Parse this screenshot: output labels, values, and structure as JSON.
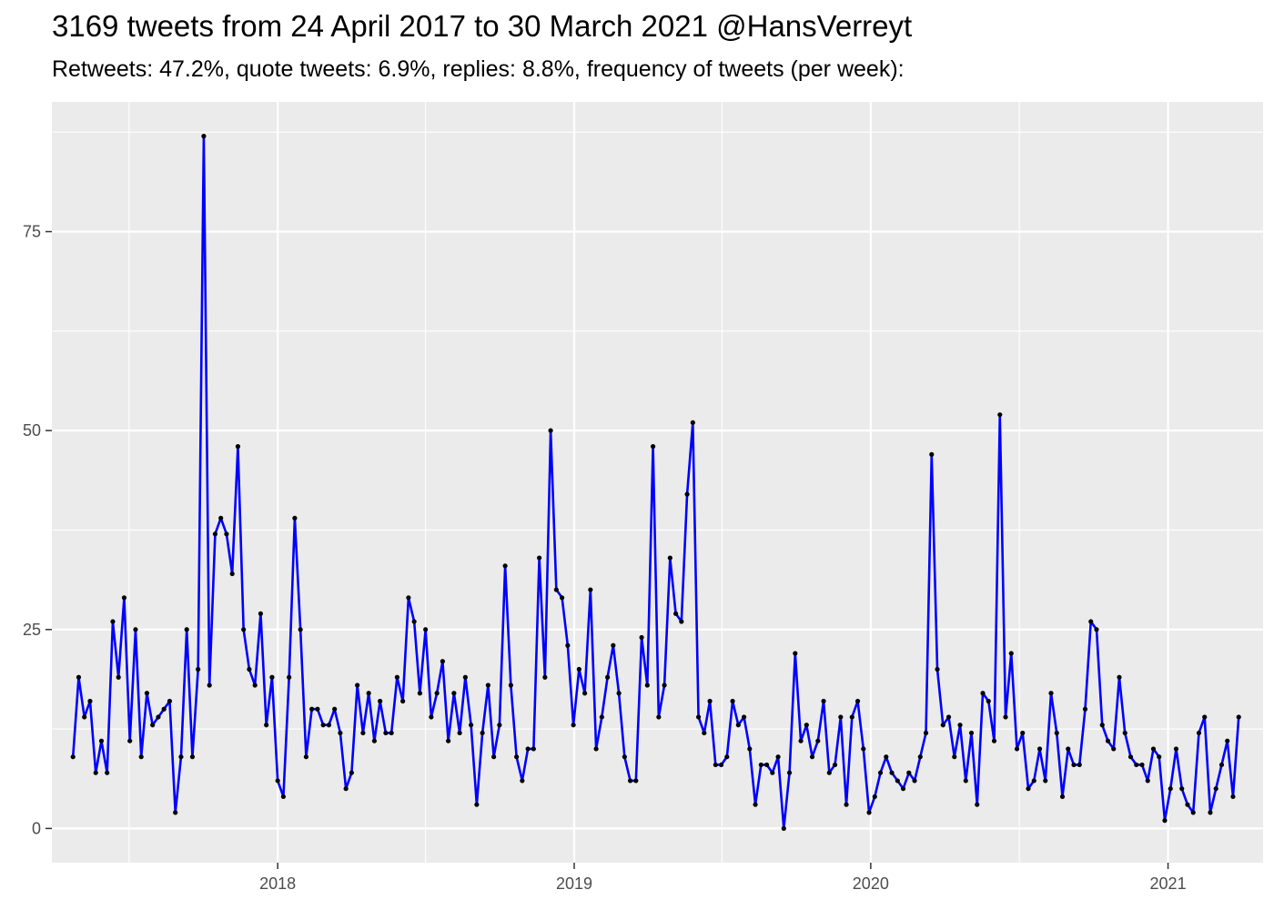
{
  "title": "3169 tweets from 24 April 2017 to 30 March 2021 @HansVerreyt",
  "subtitle": "Retweets: 47.2%, quote tweets: 6.9%, replies: 8.8%, frequency of tweets (per week):",
  "colors": {
    "line": "#0000ff",
    "point": "#000000",
    "panel": "#ebebeb",
    "grid": "#ffffff"
  },
  "chart_data": {
    "type": "line",
    "title": "3169 tweets from 24 April 2017 to 30 March 2021 @HansVerreyt",
    "subtitle": "Retweets: 47.2%, quote tweets: 6.9%, replies: 8.8%, frequency of tweets (per week):",
    "xlabel": "",
    "ylabel": "",
    "x_ticks": [
      "2018",
      "2019",
      "2020",
      "2021"
    ],
    "y_ticks": [
      0,
      25,
      50,
      75
    ],
    "xlim": [
      "2017-03-29",
      "2021-04-28"
    ],
    "ylim": [
      -4.3,
      91.3
    ],
    "grid": true,
    "series": [
      {
        "x": [
          "2017-04-24",
          "2017-05-01",
          "2017-05-08",
          "2017-05-15",
          "2017-05-22",
          "2017-05-29",
          "2017-06-05",
          "2017-06-12",
          "2017-06-19",
          "2017-06-26",
          "2017-07-03",
          "2017-07-10",
          "2017-07-17",
          "2017-07-24",
          "2017-07-31",
          "2017-08-07",
          "2017-08-14",
          "2017-08-21",
          "2017-08-28",
          "2017-09-04",
          "2017-09-11",
          "2017-09-18",
          "2017-09-25",
          "2017-10-02",
          "2017-10-09",
          "2017-10-16",
          "2017-10-23",
          "2017-10-30",
          "2017-11-06",
          "2017-11-13",
          "2017-11-20",
          "2017-11-27",
          "2017-12-04",
          "2017-12-11",
          "2017-12-18",
          "2017-12-25",
          "2018-01-01",
          "2018-01-08",
          "2018-01-15",
          "2018-01-22",
          "2018-01-29",
          "2018-02-05",
          "2018-02-12",
          "2018-02-19",
          "2018-02-26",
          "2018-03-05",
          "2018-03-12",
          "2018-03-19",
          "2018-03-26",
          "2018-04-02",
          "2018-04-09",
          "2018-04-16",
          "2018-04-23",
          "2018-04-30",
          "2018-05-07",
          "2018-05-14",
          "2018-05-21",
          "2018-05-28",
          "2018-06-04",
          "2018-06-11",
          "2018-06-18",
          "2018-06-25",
          "2018-07-02",
          "2018-07-09",
          "2018-07-16",
          "2018-07-23",
          "2018-07-30",
          "2018-08-06",
          "2018-08-13",
          "2018-08-20",
          "2018-08-27",
          "2018-09-03",
          "2018-09-10",
          "2018-09-17",
          "2018-09-24",
          "2018-10-01",
          "2018-10-08",
          "2018-10-15",
          "2018-10-22",
          "2018-10-29",
          "2018-11-05",
          "2018-11-12",
          "2018-11-19",
          "2018-11-26",
          "2018-12-03",
          "2018-12-10",
          "2018-12-17",
          "2018-12-24",
          "2018-12-31",
          "2019-01-07",
          "2019-01-14",
          "2019-01-21",
          "2019-01-28",
          "2019-02-04",
          "2019-02-11",
          "2019-02-18",
          "2019-02-25",
          "2019-03-04",
          "2019-03-11",
          "2019-03-18",
          "2019-03-25",
          "2019-04-01",
          "2019-04-08",
          "2019-04-15",
          "2019-04-22",
          "2019-04-29",
          "2019-05-06",
          "2019-05-13",
          "2019-05-20",
          "2019-05-27",
          "2019-06-03",
          "2019-06-10",
          "2019-06-17",
          "2019-06-24",
          "2019-07-01",
          "2019-07-08",
          "2019-07-15",
          "2019-07-22",
          "2019-07-29",
          "2019-08-05",
          "2019-08-12",
          "2019-08-19",
          "2019-08-26",
          "2019-09-02",
          "2019-09-09",
          "2019-09-16",
          "2019-09-23",
          "2019-09-30",
          "2019-10-07",
          "2019-10-14",
          "2019-10-21",
          "2019-10-28",
          "2019-11-04",
          "2019-11-11",
          "2019-11-18",
          "2019-11-25",
          "2019-12-02",
          "2019-12-09",
          "2019-12-16",
          "2019-12-23",
          "2019-12-30",
          "2020-01-06",
          "2020-01-13",
          "2020-01-20",
          "2020-01-27",
          "2020-02-03",
          "2020-02-10",
          "2020-02-17",
          "2020-02-24",
          "2020-03-02",
          "2020-03-09",
          "2020-03-16",
          "2020-03-23",
          "2020-03-30",
          "2020-04-06",
          "2020-04-13",
          "2020-04-20",
          "2020-04-27",
          "2020-05-04",
          "2020-05-11",
          "2020-05-18",
          "2020-05-25",
          "2020-06-01",
          "2020-06-08",
          "2020-06-15",
          "2020-06-22",
          "2020-06-29",
          "2020-07-06",
          "2020-07-13",
          "2020-07-20",
          "2020-07-27",
          "2020-08-03",
          "2020-08-10",
          "2020-08-17",
          "2020-08-24",
          "2020-08-31",
          "2020-09-07",
          "2020-09-14",
          "2020-09-21",
          "2020-09-28",
          "2020-10-05",
          "2020-10-12",
          "2020-10-19",
          "2020-10-26",
          "2020-11-02",
          "2020-11-09",
          "2020-11-16",
          "2020-11-23",
          "2020-11-30",
          "2020-12-07",
          "2020-12-14",
          "2020-12-21",
          "2020-12-28",
          "2021-01-04",
          "2021-01-11",
          "2021-01-18",
          "2021-01-25",
          "2021-02-01",
          "2021-02-08",
          "2021-02-15",
          "2021-02-22",
          "2021-03-01",
          "2021-03-08",
          "2021-03-15",
          "2021-03-22",
          "2021-03-29"
        ],
        "values": [
          9,
          19,
          14,
          16,
          7,
          11,
          7,
          26,
          19,
          29,
          11,
          25,
          9,
          17,
          13,
          14,
          15,
          16,
          2,
          9,
          25,
          9,
          20,
          87,
          18,
          37,
          39,
          37,
          32,
          48,
          25,
          20,
          18,
          27,
          13,
          19,
          6,
          4,
          19,
          39,
          25,
          9,
          15,
          15,
          13,
          13,
          15,
          12,
          5,
          7,
          18,
          12,
          17,
          11,
          16,
          12,
          12,
          19,
          16,
          29,
          26,
          17,
          25,
          14,
          17,
          21,
          11,
          17,
          12,
          19,
          13,
          3,
          12,
          18,
          9,
          13,
          33,
          18,
          9,
          6,
          10,
          10,
          34,
          19,
          50,
          30,
          29,
          23,
          13,
          20,
          17,
          30,
          10,
          14,
          19,
          23,
          17,
          9,
          6,
          6,
          24,
          18,
          48,
          14,
          18,
          34,
          27,
          26,
          42,
          51,
          14,
          12,
          16,
          8,
          8,
          9,
          16,
          13,
          14,
          10,
          3,
          8,
          8,
          7,
          9,
          0,
          7,
          22,
          11,
          13,
          9,
          11,
          16,
          7,
          8,
          14,
          3,
          14,
          16,
          10,
          2,
          4,
          7,
          9,
          7,
          6,
          5,
          7,
          6,
          9,
          12,
          47,
          20,
          13,
          14,
          9,
          13,
          6,
          12,
          3,
          17,
          16,
          11,
          52,
          14,
          22,
          10,
          12,
          5,
          6,
          10,
          6,
          17,
          12,
          4,
          10,
          8,
          8,
          15,
          26,
          25,
          13,
          11,
          10,
          19,
          12,
          9,
          8,
          8,
          6,
          10,
          9,
          1,
          5,
          10,
          5,
          3,
          2,
          12,
          14,
          2,
          5,
          8,
          11,
          4,
          14
        ]
      }
    ]
  }
}
